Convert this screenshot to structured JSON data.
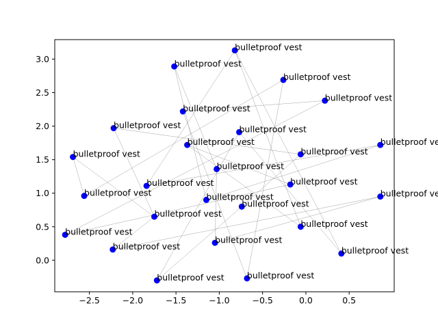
{
  "chart_data": {
    "type": "scatter",
    "title": "",
    "xlabel": "",
    "ylabel": "",
    "xlim": [
      -2.9,
      1.02
    ],
    "ylim": [
      -0.47,
      3.29
    ],
    "xticks": [
      -2.5,
      -2.0,
      -1.5,
      -1.0,
      -0.5,
      0.0,
      0.5
    ],
    "xtick_labels": [
      "−2.5",
      "−2.0",
      "−1.5",
      "−1.0",
      "−0.5",
      "0.0",
      "0.5"
    ],
    "yticks": [
      0.0,
      0.5,
      1.0,
      1.5,
      2.0,
      2.5,
      3.0
    ],
    "ytick_labels": [
      "0.0",
      "0.5",
      "1.0",
      "1.5",
      "2.0",
      "2.5",
      "3.0"
    ],
    "grid": false,
    "marker_color": "#0000ff",
    "line_color": "#808080",
    "points": [
      {
        "x": -0.82,
        "y": 3.13,
        "label": "bulletproof vest"
      },
      {
        "x": -1.52,
        "y": 2.89,
        "label": "bulletproof vest"
      },
      {
        "x": -0.26,
        "y": 2.69,
        "label": "bulletproof vest"
      },
      {
        "x": 0.22,
        "y": 2.38,
        "label": "bulletproof vest"
      },
      {
        "x": -1.42,
        "y": 2.22,
        "label": "bulletproof vest"
      },
      {
        "x": -2.22,
        "y": 1.97,
        "label": "bulletproof vest"
      },
      {
        "x": -0.77,
        "y": 1.91,
        "label": "bulletproof vest"
      },
      {
        "x": -1.37,
        "y": 1.72,
        "label": "bulletproof vest"
      },
      {
        "x": 0.86,
        "y": 1.72,
        "label": "bulletproof vest"
      },
      {
        "x": -0.06,
        "y": 1.58,
        "label": "bulletproof vest"
      },
      {
        "x": -2.69,
        "y": 1.54,
        "label": "bulletproof vest"
      },
      {
        "x": -1.03,
        "y": 1.36,
        "label": "bulletproof vest"
      },
      {
        "x": -0.18,
        "y": 1.13,
        "label": "bulletproof vest"
      },
      {
        "x": -1.84,
        "y": 1.11,
        "label": "bulletproof vest"
      },
      {
        "x": -2.56,
        "y": 0.96,
        "label": "bulletproof vest"
      },
      {
        "x": 0.86,
        "y": 0.95,
        "label": "bulletproof vest"
      },
      {
        "x": -1.15,
        "y": 0.9,
        "label": "bulletproof vest"
      },
      {
        "x": -0.74,
        "y": 0.8,
        "label": "bulletproof vest"
      },
      {
        "x": -1.75,
        "y": 0.65,
        "label": "bulletproof vest"
      },
      {
        "x": -0.06,
        "y": 0.5,
        "label": "bulletproof vest"
      },
      {
        "x": -2.78,
        "y": 0.38,
        "label": "bulletproof vest"
      },
      {
        "x": -1.05,
        "y": 0.26,
        "label": "bulletproof vest"
      },
      {
        "x": -2.23,
        "y": 0.16,
        "label": "bulletproof vest"
      },
      {
        "x": 0.41,
        "y": 0.1,
        "label": "bulletproof vest"
      },
      {
        "x": -1.72,
        "y": -0.3,
        "label": "bulletproof vest"
      },
      {
        "x": -0.68,
        "y": -0.27,
        "label": "bulletproof vest"
      }
    ],
    "connections": [
      [
        0,
        19
      ],
      [
        19,
        7
      ],
      [
        7,
        12
      ],
      [
        12,
        20
      ],
      [
        20,
        3
      ],
      [
        3,
        4
      ],
      [
        4,
        25
      ],
      [
        25,
        2
      ],
      [
        2,
        14
      ],
      [
        14,
        10
      ],
      [
        10,
        18
      ],
      [
        18,
        22
      ],
      [
        22,
        15
      ],
      [
        15,
        21
      ],
      [
        21,
        11
      ],
      [
        11,
        1
      ],
      [
        1,
        16
      ],
      [
        16,
        8
      ],
      [
        8,
        13
      ],
      [
        13,
        0
      ],
      [
        0,
        23
      ],
      [
        23,
        6
      ],
      [
        6,
        24
      ],
      [
        24,
        17
      ],
      [
        17,
        9
      ],
      [
        9,
        5
      ],
      [
        5,
        18
      ]
    ]
  }
}
